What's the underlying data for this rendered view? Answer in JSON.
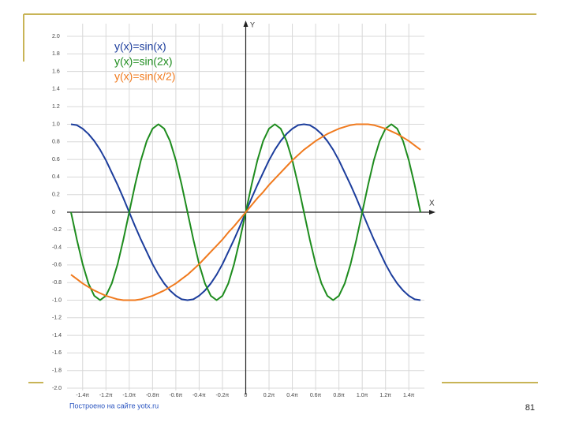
{
  "chart_data": {
    "type": "line",
    "x_label": "X",
    "y_label": "Y",
    "source": "Построено на сайте yotx.ru",
    "xlim": [
      -1.5,
      1.5
    ],
    "ylim": [
      -2,
      2
    ],
    "grid": true,
    "xticks": [
      {
        "value": -1.4,
        "label": "-1.4π"
      },
      {
        "value": -1.2,
        "label": "-1.2π"
      },
      {
        "value": -1,
        "label": "-1.0π"
      },
      {
        "value": -0.8,
        "label": "-0.8π"
      },
      {
        "value": -0.6,
        "label": "-0.6π"
      },
      {
        "value": -0.4,
        "label": "-0.4π"
      },
      {
        "value": -0.2,
        "label": "-0.2π"
      },
      0,
      {
        "value": 0.2,
        "label": "0.2π"
      },
      {
        "value": 0.4,
        "label": "0.4π"
      },
      {
        "value": 0.6,
        "label": "0.6π"
      },
      {
        "value": 0.8,
        "label": "0.8π"
      },
      {
        "value": 1,
        "label": "1.0π"
      },
      {
        "value": 1.2,
        "label": "1.2π"
      },
      {
        "value": 1.4,
        "label": "1.4π"
      }
    ],
    "yticks": [
      {
        "value": 2,
        "label": "2.0"
      },
      1.8,
      1.6,
      1.4,
      1.2,
      {
        "value": 1,
        "label": "1.0"
      },
      0.8,
      0.6,
      0.4,
      0.2,
      0,
      -0.2,
      -0.4,
      -0.6,
      -0.8,
      {
        "value": -1,
        "label": "-1.0"
      },
      -1.2,
      -1.4,
      -1.6,
      -1.8,
      {
        "value": -2,
        "label": "-2.0"
      }
    ],
    "x": [
      -1.5,
      -1.45,
      -1.4,
      -1.35,
      -1.3,
      -1.25,
      -1.2,
      -1.15,
      -1.1,
      -1.05,
      -1,
      -0.95,
      -0.9,
      -0.85,
      -0.8,
      -0.75,
      -0.7,
      -0.65,
      -0.6,
      -0.55,
      -0.5,
      -0.45,
      -0.4,
      -0.35,
      -0.3,
      -0.25,
      -0.2,
      -0.15,
      -0.1,
      -0.05,
      0,
      0.05,
      0.1,
      0.15,
      0.2,
      0.25,
      0.3,
      0.35,
      0.4,
      0.45,
      0.5,
      0.55,
      0.6,
      0.65,
      0.7,
      0.75,
      0.8,
      0.85,
      0.9,
      0.95,
      1,
      1.05,
      1.1,
      1.15,
      1.2,
      1.25,
      1.3,
      1.35,
      1.4,
      1.45,
      1.5
    ],
    "series": [
      {
        "name": "y(x)=sin(x)",
        "color": "#1c3d9c",
        "values": [
          1,
          0.99,
          0.95,
          0.89,
          0.81,
          0.71,
          0.59,
          0.45,
          0.31,
          0.16,
          0,
          -0.16,
          -0.31,
          -0.45,
          -0.59,
          -0.71,
          -0.81,
          -0.89,
          -0.95,
          -0.99,
          -1,
          -0.99,
          -0.95,
          -0.89,
          -0.81,
          -0.71,
          -0.59,
          -0.45,
          -0.31,
          -0.16,
          0,
          0.16,
          0.31,
          0.45,
          0.59,
          0.71,
          0.81,
          0.89,
          0.95,
          0.99,
          1,
          0.99,
          0.95,
          0.89,
          0.81,
          0.71,
          0.59,
          0.45,
          0.31,
          0.16,
          0,
          -0.16,
          -0.31,
          -0.45,
          -0.59,
          -0.71,
          -0.81,
          -0.89,
          -0.95,
          -0.99,
          -1
        ]
      },
      {
        "name": "y(x)=sin(2x)",
        "color": "#1e8c1e",
        "values": [
          0,
          -0.31,
          -0.59,
          -0.81,
          -0.95,
          -1,
          -0.95,
          -0.81,
          -0.59,
          -0.31,
          0,
          0.31,
          0.59,
          0.81,
          0.95,
          1,
          0.95,
          0.81,
          0.59,
          0.31,
          0,
          -0.31,
          -0.59,
          -0.81,
          -0.95,
          -1,
          -0.95,
          -0.81,
          -0.59,
          -0.31,
          0,
          0.31,
          0.59,
          0.81,
          0.95,
          1,
          0.95,
          0.81,
          0.59,
          0.31,
          0,
          -0.31,
          -0.59,
          -0.81,
          -0.95,
          -1,
          -0.95,
          -0.81,
          -0.59,
          -0.31,
          0,
          0.31,
          0.59,
          0.81,
          0.95,
          1,
          0.95,
          0.81,
          0.59,
          0.31,
          0
        ]
      },
      {
        "name": "y(x)=sin(x/2)",
        "color": "#f07a1e",
        "values": [
          -0.71,
          -0.76,
          -0.81,
          -0.85,
          -0.89,
          -0.92,
          -0.95,
          -0.97,
          -0.99,
          -1,
          -1,
          -1,
          -0.99,
          -0.97,
          -0.95,
          -0.92,
          -0.89,
          -0.85,
          -0.81,
          -0.76,
          -0.71,
          -0.65,
          -0.59,
          -0.52,
          -0.45,
          -0.38,
          -0.31,
          -0.23,
          -0.16,
          -0.08,
          0,
          0.08,
          0.16,
          0.23,
          0.31,
          0.38,
          0.45,
          0.52,
          0.59,
          0.65,
          0.71,
          0.76,
          0.81,
          0.85,
          0.89,
          0.92,
          0.95,
          0.97,
          0.99,
          1,
          1,
          1,
          0.99,
          0.97,
          0.95,
          0.92,
          0.89,
          0.85,
          0.81,
          0.76,
          0.71
        ]
      }
    ]
  },
  "slide_number": "81"
}
